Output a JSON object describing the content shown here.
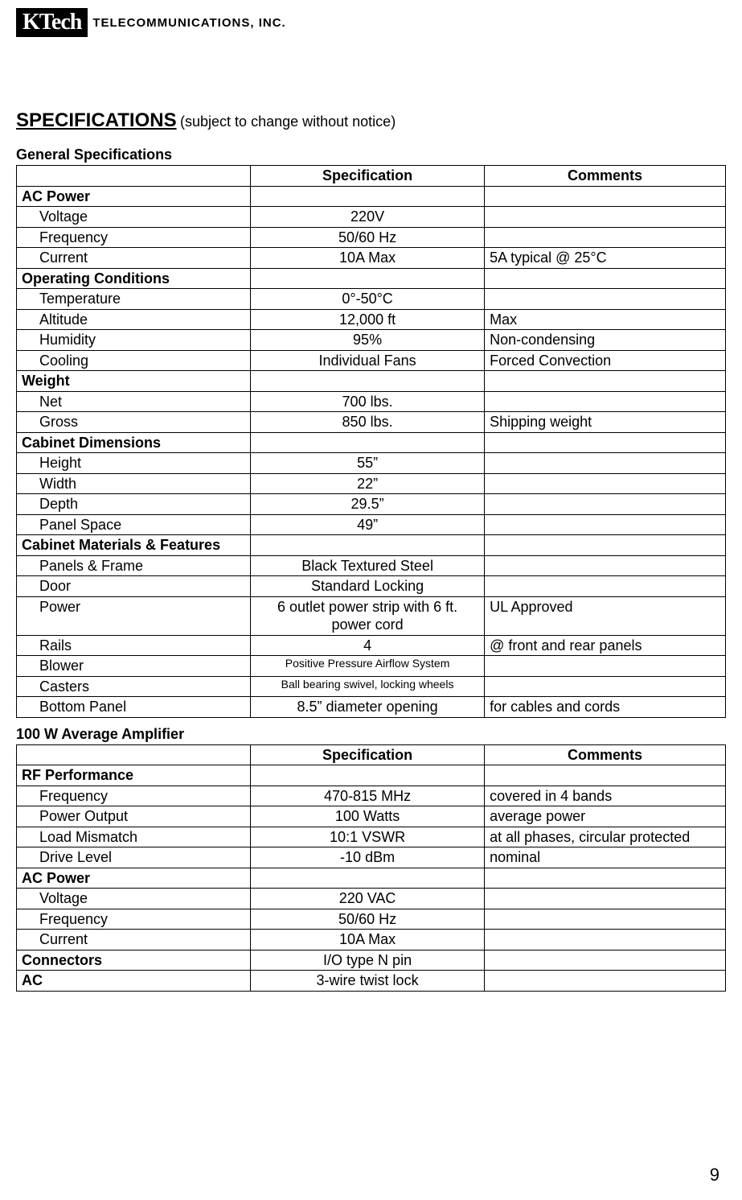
{
  "logo": {
    "boxed": "KTech",
    "suffix": "TELECOMMUNICATIONS, INC."
  },
  "title": {
    "main": "SPECIFICATIONS",
    "note": "(subject to change without notice)"
  },
  "page_number": "9",
  "headers": {
    "spec": "Specification",
    "comm": "Comments"
  },
  "table1": {
    "title": "General Specifications",
    "rows": [
      {
        "type": "header",
        "param": "AC Power"
      },
      {
        "type": "item",
        "param": "Voltage",
        "spec": "220V",
        "comm": ""
      },
      {
        "type": "item",
        "param": "Frequency",
        "spec": "50/60 Hz",
        "comm": ""
      },
      {
        "type": "item",
        "param": "Current",
        "spec": "10A Max",
        "comm": "5A typical @ 25°C"
      },
      {
        "type": "header",
        "param": "Operating Conditions"
      },
      {
        "type": "item",
        "param": "Temperature",
        "spec": "0°-50°C",
        "comm": ""
      },
      {
        "type": "item",
        "param": "Altitude",
        "spec": "12,000 ft",
        "comm": "Max"
      },
      {
        "type": "item",
        "param": "Humidity",
        "spec": "95%",
        "comm": "Non-condensing"
      },
      {
        "type": "item",
        "param": "Cooling",
        "spec": "Individual Fans",
        "comm": "Forced Convection"
      },
      {
        "type": "header",
        "param": "Weight"
      },
      {
        "type": "item",
        "param": "Net",
        "spec": "700 lbs.",
        "comm": ""
      },
      {
        "type": "item",
        "param": "Gross",
        "spec": "850 lbs.",
        "comm": "Shipping weight"
      },
      {
        "type": "header",
        "param": "Cabinet Dimensions"
      },
      {
        "type": "item",
        "param": "Height",
        "spec": "55”",
        "comm": ""
      },
      {
        "type": "item",
        "param": "Width",
        "spec": "22”",
        "comm": ""
      },
      {
        "type": "item",
        "param": "Depth",
        "spec": "29.5”",
        "comm": ""
      },
      {
        "type": "item",
        "param": "Panel Space",
        "spec": "49”",
        "comm": ""
      },
      {
        "type": "header",
        "param": "Cabinet Materials & Features"
      },
      {
        "type": "item",
        "param": "Panels & Frame",
        "spec": "Black Textured Steel",
        "comm": ""
      },
      {
        "type": "item",
        "param": "Door",
        "spec": "Standard Locking",
        "comm": ""
      },
      {
        "type": "item",
        "param": "Power",
        "spec": "6 outlet power strip with 6 ft. power cord",
        "comm": "UL Approved"
      },
      {
        "type": "item",
        "param": "Rails",
        "spec": "4",
        "comm": "@ front and rear panels"
      },
      {
        "type": "item",
        "param": "Blower",
        "spec": "Positive Pressure Airflow System",
        "comm": "",
        "small": true
      },
      {
        "type": "item",
        "param": "Casters",
        "spec": "Ball bearing swivel, locking wheels",
        "comm": "",
        "small": true
      },
      {
        "type": "item",
        "param": "Bottom Panel",
        "spec": "8.5” diameter opening",
        "comm": "for cables and cords"
      }
    ]
  },
  "table2": {
    "title": "100 W Average Amplifier",
    "rows": [
      {
        "type": "header",
        "param": "RF Performance"
      },
      {
        "type": "item",
        "param": "Frequency",
        "spec": "470-815 MHz",
        "comm": "covered in 4 bands"
      },
      {
        "type": "item",
        "param": "Power Output",
        "spec": "100 Watts",
        "comm": "average power"
      },
      {
        "type": "item",
        "param": "Load Mismatch",
        "spec": "10:1 VSWR",
        "comm": "at all phases, circular protected"
      },
      {
        "type": "item",
        "param": "Drive Level",
        "spec": "-10 dBm",
        "comm": "nominal"
      },
      {
        "type": "header",
        "param": "AC Power"
      },
      {
        "type": "item",
        "param": "Voltage",
        "spec": "220 VAC",
        "comm": ""
      },
      {
        "type": "item",
        "param": "Frequency",
        "spec": "50/60 Hz",
        "comm": ""
      },
      {
        "type": "item",
        "param": "Current",
        "spec": "10A Max",
        "comm": ""
      },
      {
        "type": "header-spec",
        "param": "Connectors",
        "spec": "I/O type N pin",
        "comm": ""
      },
      {
        "type": "header-spec",
        "param": "AC",
        "spec": "3-wire twist lock",
        "comm": ""
      }
    ]
  }
}
